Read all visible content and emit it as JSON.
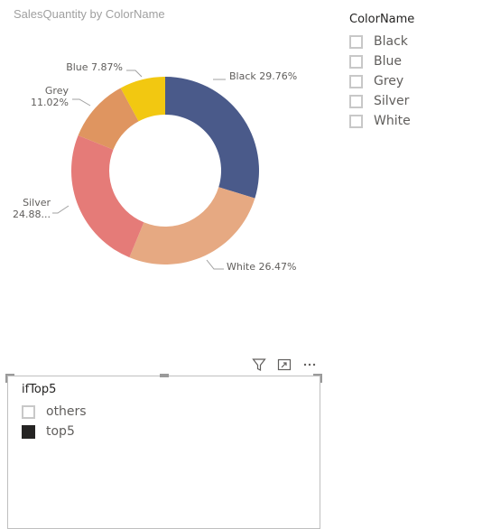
{
  "chart": {
    "title": "SalesQuantity by ColorName"
  },
  "chart_data": {
    "type": "pie",
    "title": "SalesQuantity by ColorName",
    "donut": true,
    "slices": [
      {
        "name": "Black",
        "value": 29.76,
        "color": "#4a5a8a"
      },
      {
        "name": "White",
        "value": 26.47,
        "color": "#e6a982"
      },
      {
        "name": "Silver",
        "value": 24.88,
        "color": "#e57b78"
      },
      {
        "name": "Grey",
        "value": 11.02,
        "color": "#df9560"
      },
      {
        "name": "Blue",
        "value": 7.87,
        "color": "#f2c811"
      }
    ],
    "data_labels": [
      {
        "name": "Black",
        "lines": [
          "Black 29.76%"
        ]
      },
      {
        "name": "White",
        "lines": [
          "White 26.47%"
        ]
      },
      {
        "name": "Silver",
        "lines": [
          "Silver",
          "24.88..."
        ]
      },
      {
        "name": "Grey",
        "lines": [
          "Grey",
          "11.02%"
        ]
      },
      {
        "name": "Blue",
        "lines": [
          "Blue 7.87%"
        ]
      }
    ]
  },
  "colorname_slicer": {
    "title": "ColorName",
    "items": [
      {
        "label": "Black",
        "checked": false
      },
      {
        "label": "Blue",
        "checked": false
      },
      {
        "label": "Grey",
        "checked": false
      },
      {
        "label": "Silver",
        "checked": false
      },
      {
        "label": "White",
        "checked": false
      }
    ]
  },
  "iftop5_slicer": {
    "title": "ifTop5",
    "items": [
      {
        "label": "others",
        "checked": false
      },
      {
        "label": "top5",
        "checked": true
      }
    ]
  },
  "toolbar": {
    "icons": [
      "filter-icon",
      "focus-mode-icon",
      "more-options-icon"
    ]
  }
}
